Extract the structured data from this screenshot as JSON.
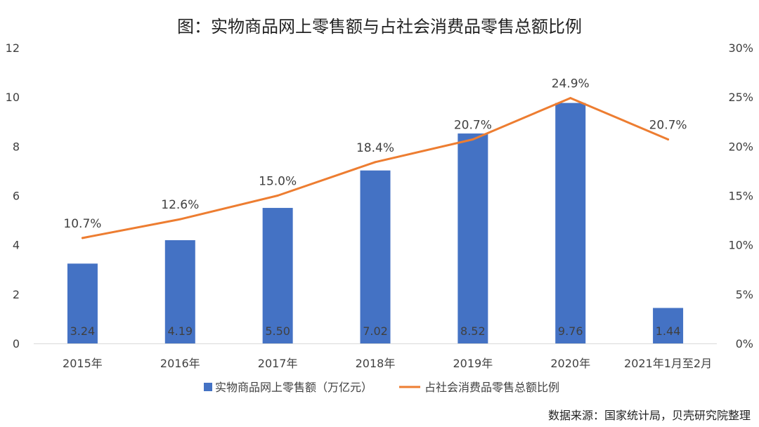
{
  "chart_data": {
    "type": "bar",
    "title": "图：实物商品网上零售额与占社会消费品零售总额比例",
    "categories": [
      "2015年",
      "2016年",
      "2017年",
      "2018年",
      "2019年",
      "2020年",
      "2021年1月至2月"
    ],
    "series": [
      {
        "name": "实物商品网上零售额（万亿元）",
        "type": "bar",
        "axis": "left",
        "values": [
          3.24,
          4.19,
          5.5,
          7.02,
          8.52,
          9.76,
          1.44
        ],
        "labels": [
          "3.24",
          "4.19",
          "5.50",
          "7.02",
          "8.52",
          "9.76",
          "1.44"
        ],
        "color": "#4472C4"
      },
      {
        "name": "占社会消费品零售总额比例",
        "type": "line",
        "axis": "right",
        "values": [
          10.7,
          12.6,
          15.0,
          18.4,
          20.7,
          24.9,
          20.7
        ],
        "labels": [
          "10.7%",
          "12.6%",
          "15.0%",
          "18.4%",
          "20.7%",
          "24.9%",
          "20.7%"
        ],
        "color": "#ED7D31"
      }
    ],
    "y_left": {
      "lim": [
        0,
        12
      ],
      "ticks": [
        "0",
        "2",
        "4",
        "6",
        "8",
        "10",
        "12"
      ]
    },
    "y_right": {
      "lim": [
        0,
        30
      ],
      "ticks": [
        "0%",
        "5%",
        "10%",
        "15%",
        "20%",
        "25%",
        "30%"
      ]
    },
    "grid": false,
    "legend_position": "bottom"
  },
  "source": "数据来源：国家统计局，贝壳研究院整理"
}
